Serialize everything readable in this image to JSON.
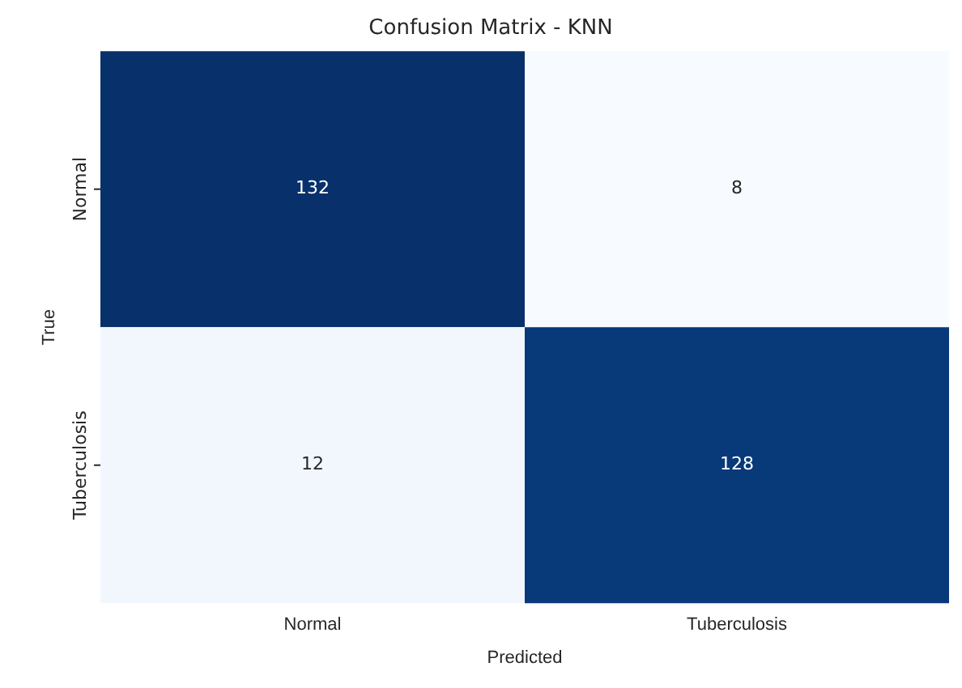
{
  "chart_data": {
    "type": "heatmap",
    "title": "Confusion Matrix - KNN",
    "xlabel": "Predicted",
    "ylabel": "True",
    "categories": [
      "Normal",
      "Tuberculosis"
    ],
    "y_categories": [
      "Normal",
      "Tuberculosis"
    ],
    "cells": [
      [
        132,
        8
      ],
      [
        12,
        128
      ]
    ],
    "data_labels": true
  }
}
